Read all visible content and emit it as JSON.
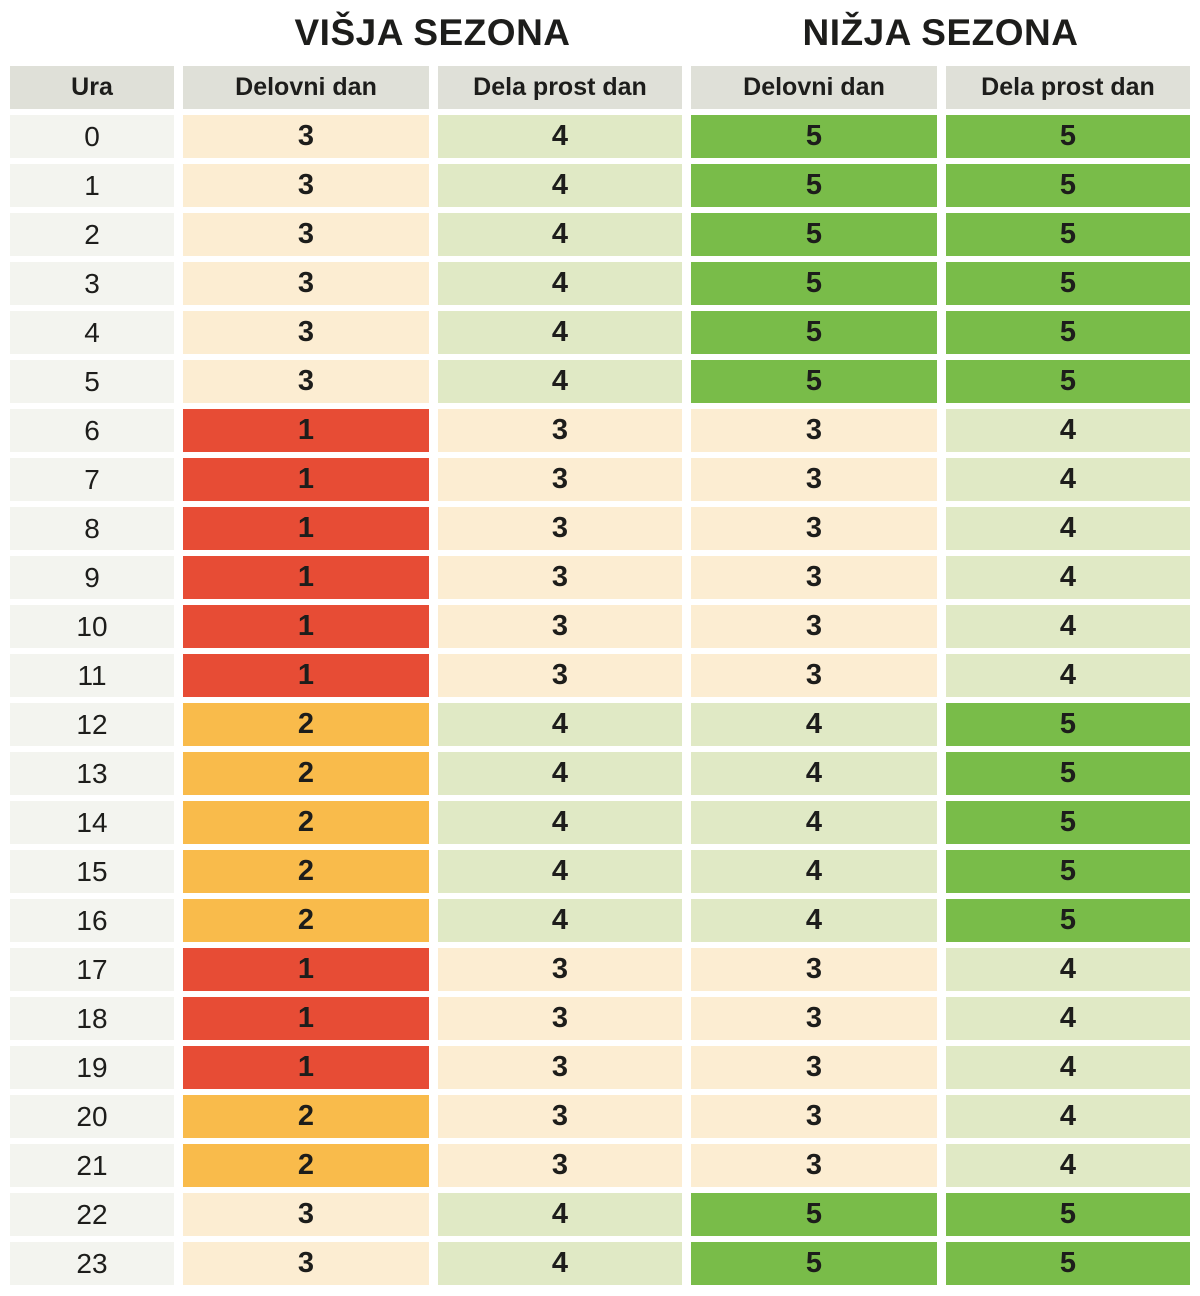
{
  "titles": {
    "higher_season": "VIŠJA SEZONA",
    "lower_season": "NIŽJA SEZONA"
  },
  "header": {
    "hour": "Ura",
    "workday": "Delovni dan",
    "free_day": "Dela prost dan"
  },
  "legend_colors": {
    "block1": "#e74c35",
    "block2": "#f9bb4b",
    "block3": "#fcedd2",
    "block4": "#e0e9c5",
    "block5": "#79bc49",
    "header_bg": "#dfe0d8",
    "hour_bg": "#f3f4ef",
    "text": "#1d1d1b"
  },
  "chart_data": {
    "type": "table",
    "title_left": "VIŠJA SEZONA",
    "title_right": "NIŽJA SEZONA",
    "column_groups": [
      "VIŠJA SEZONA",
      "NIŽJA SEZONA"
    ],
    "columns": [
      "Ura",
      "Delovni dan",
      "Dela prost dan",
      "Delovni dan",
      "Dela prost dan"
    ],
    "block_color_legend": {
      "1": "red",
      "2": "orange",
      "3": "cream",
      "4": "light-green",
      "5": "green"
    },
    "rows": [
      {
        "hour": "0",
        "visja_delovni_dan": 3,
        "visja_dela_prost_dan": 4,
        "nizja_delovni_dan": 5,
        "nizja_dela_prost_dan": 5
      },
      {
        "hour": "1",
        "visja_delovni_dan": 3,
        "visja_dela_prost_dan": 4,
        "nizja_delovni_dan": 5,
        "nizja_dela_prost_dan": 5
      },
      {
        "hour": "2",
        "visja_delovni_dan": 3,
        "visja_dela_prost_dan": 4,
        "nizja_delovni_dan": 5,
        "nizja_dela_prost_dan": 5
      },
      {
        "hour": "3",
        "visja_delovni_dan": 3,
        "visja_dela_prost_dan": 4,
        "nizja_delovni_dan": 5,
        "nizja_dela_prost_dan": 5
      },
      {
        "hour": "4",
        "visja_delovni_dan": 3,
        "visja_dela_prost_dan": 4,
        "nizja_delovni_dan": 5,
        "nizja_dela_prost_dan": 5
      },
      {
        "hour": "5",
        "visja_delovni_dan": 3,
        "visja_dela_prost_dan": 4,
        "nizja_delovni_dan": 5,
        "nizja_dela_prost_dan": 5
      },
      {
        "hour": "6",
        "visja_delovni_dan": 1,
        "visja_dela_prost_dan": 3,
        "nizja_delovni_dan": 3,
        "nizja_dela_prost_dan": 4
      },
      {
        "hour": "7",
        "visja_delovni_dan": 1,
        "visja_dela_prost_dan": 3,
        "nizja_delovni_dan": 3,
        "nizja_dela_prost_dan": 4
      },
      {
        "hour": "8",
        "visja_delovni_dan": 1,
        "visja_dela_prost_dan": 3,
        "nizja_delovni_dan": 3,
        "nizja_dela_prost_dan": 4
      },
      {
        "hour": "9",
        "visja_delovni_dan": 1,
        "visja_dela_prost_dan": 3,
        "nizja_delovni_dan": 3,
        "nizja_dela_prost_dan": 4
      },
      {
        "hour": "10",
        "visja_delovni_dan": 1,
        "visja_dela_prost_dan": 3,
        "nizja_delovni_dan": 3,
        "nizja_dela_prost_dan": 4
      },
      {
        "hour": "11",
        "visja_delovni_dan": 1,
        "visja_dela_prost_dan": 3,
        "nizja_delovni_dan": 3,
        "nizja_dela_prost_dan": 4
      },
      {
        "hour": "12",
        "visja_delovni_dan": 2,
        "visja_dela_prost_dan": 4,
        "nizja_delovni_dan": 4,
        "nizja_dela_prost_dan": 5
      },
      {
        "hour": "13",
        "visja_delovni_dan": 2,
        "visja_dela_prost_dan": 4,
        "nizja_delovni_dan": 4,
        "nizja_dela_prost_dan": 5
      },
      {
        "hour": "14",
        "visja_delovni_dan": 2,
        "visja_dela_prost_dan": 4,
        "nizja_delovni_dan": 4,
        "nizja_dela_prost_dan": 5
      },
      {
        "hour": "15",
        "visja_delovni_dan": 2,
        "visja_dela_prost_dan": 4,
        "nizja_delovni_dan": 4,
        "nizja_dela_prost_dan": 5
      },
      {
        "hour": "16",
        "visja_delovni_dan": 2,
        "visja_dela_prost_dan": 4,
        "nizja_delovni_dan": 4,
        "nizja_dela_prost_dan": 5
      },
      {
        "hour": "17",
        "visja_delovni_dan": 1,
        "visja_dela_prost_dan": 3,
        "nizja_delovni_dan": 3,
        "nizja_dela_prost_dan": 4
      },
      {
        "hour": "18",
        "visja_delovni_dan": 1,
        "visja_dela_prost_dan": 3,
        "nizja_delovni_dan": 3,
        "nizja_dela_prost_dan": 4
      },
      {
        "hour": "19",
        "visja_delovni_dan": 1,
        "visja_dela_prost_dan": 3,
        "nizja_delovni_dan": 3,
        "nizja_dela_prost_dan": 4
      },
      {
        "hour": "20",
        "visja_delovni_dan": 2,
        "visja_dela_prost_dan": 3,
        "nizja_delovni_dan": 3,
        "nizja_dela_prost_dan": 4
      },
      {
        "hour": "21",
        "visja_delovni_dan": 2,
        "visja_dela_prost_dan": 3,
        "nizja_delovni_dan": 3,
        "nizja_dela_prost_dan": 4
      },
      {
        "hour": "22",
        "visja_delovni_dan": 3,
        "visja_dela_prost_dan": 4,
        "nizja_delovni_dan": 5,
        "nizja_dela_prost_dan": 5
      },
      {
        "hour": "23",
        "visja_delovni_dan": 3,
        "visja_dela_prost_dan": 4,
        "nizja_delovni_dan": 5,
        "nizja_dela_prost_dan": 5
      }
    ]
  }
}
